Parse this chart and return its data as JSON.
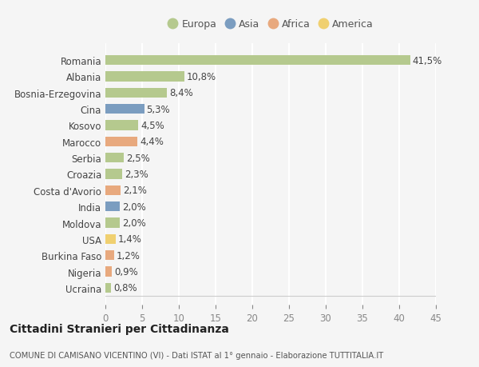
{
  "categories": [
    "Romania",
    "Albania",
    "Bosnia-Erzegovina",
    "Cina",
    "Kosovo",
    "Marocco",
    "Serbia",
    "Croazia",
    "Costa d'Avorio",
    "India",
    "Moldova",
    "USA",
    "Burkina Faso",
    "Nigeria",
    "Ucraina"
  ],
  "values": [
    41.5,
    10.8,
    8.4,
    5.3,
    4.5,
    4.4,
    2.5,
    2.3,
    2.1,
    2.0,
    2.0,
    1.4,
    1.2,
    0.9,
    0.8
  ],
  "labels": [
    "41,5%",
    "10,8%",
    "8,4%",
    "5,3%",
    "4,5%",
    "4,4%",
    "2,5%",
    "2,3%",
    "2,1%",
    "2,0%",
    "2,0%",
    "1,4%",
    "1,2%",
    "0,9%",
    "0,8%"
  ],
  "bar_colors": [
    "#b5c98e",
    "#b5c98e",
    "#b5c98e",
    "#7b9dc0",
    "#b5c98e",
    "#e8a97e",
    "#b5c98e",
    "#b5c98e",
    "#e8a97e",
    "#7b9dc0",
    "#b5c98e",
    "#f0d070",
    "#e8a97e",
    "#e8a97e",
    "#b5c98e"
  ],
  "legend_labels": [
    "Europa",
    "Asia",
    "Africa",
    "America"
  ],
  "legend_colors": [
    "#b5c98e",
    "#7b9dc0",
    "#e8a97e",
    "#f0d070"
  ],
  "title": "Cittadini Stranieri per Cittadinanza",
  "subtitle": "COMUNE DI CAMISANO VICENTINO (VI) - Dati ISTAT al 1° gennaio - Elaborazione TUTTITALIA.IT",
  "xlim": [
    0,
    45
  ],
  "xticks": [
    0,
    5,
    10,
    15,
    20,
    25,
    30,
    35,
    40,
    45
  ],
  "background_color": "#f5f5f5",
  "grid_color": "#ffffff",
  "bar_height": 0.6,
  "label_fontsize": 8.5,
  "tick_fontsize": 8.5
}
